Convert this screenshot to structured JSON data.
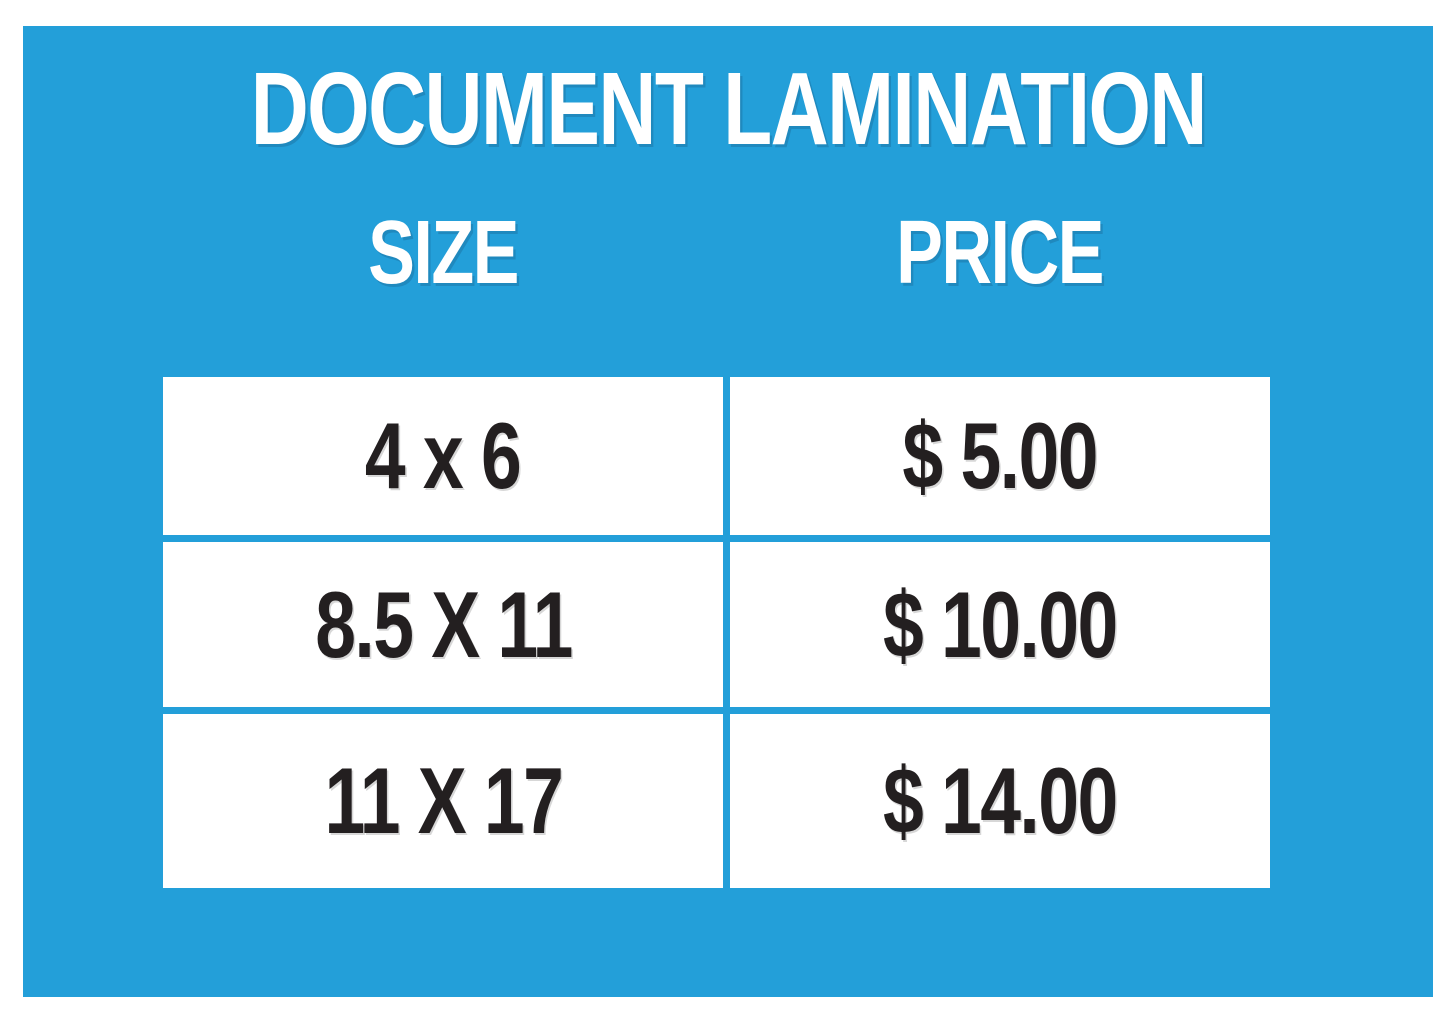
{
  "title": "DOCUMENT LAMINATION",
  "colors": {
    "poster_background": "#239FD9",
    "outer_margin": "#FFFFFF",
    "cell_background": "#FFFFFF",
    "heading_text": "#FFFFFF",
    "cell_text": "#231F20"
  },
  "table": {
    "columns": [
      {
        "label": "SIZE"
      },
      {
        "label": "PRICE"
      }
    ],
    "rows": [
      {
        "size": "4 x 6",
        "price": "$ 5.00"
      },
      {
        "size": "8.5 X 11",
        "price": "$ 10.00"
      },
      {
        "size": "11 X 17",
        "price": "$ 14.00"
      }
    ]
  }
}
